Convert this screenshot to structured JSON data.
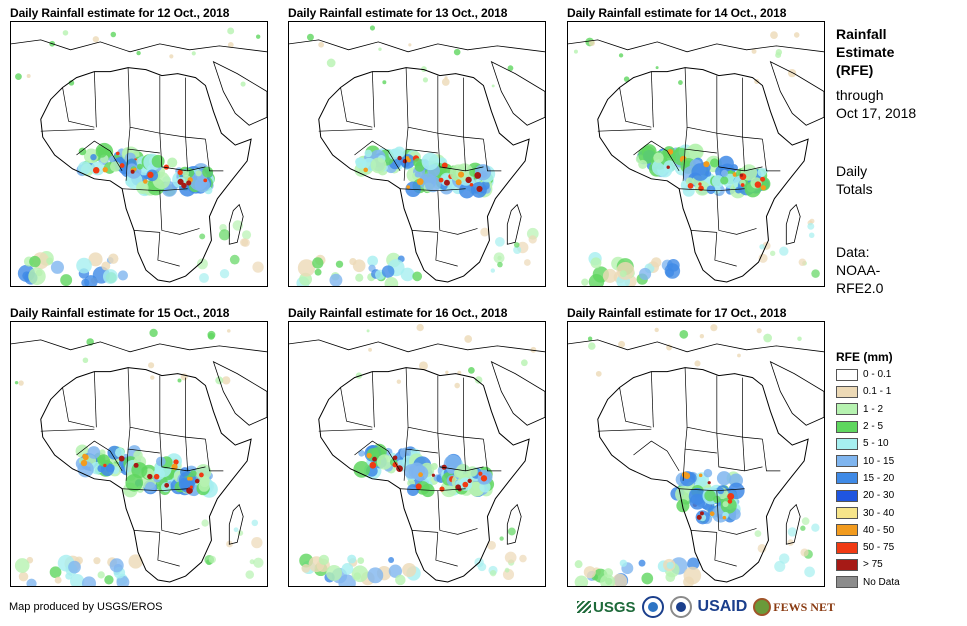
{
  "panels": [
    {
      "title": "Daily Rainfall estimate for 12 Oct., 2018"
    },
    {
      "title": "Daily Rainfall estimate for 13 Oct., 2018"
    },
    {
      "title": "Daily Rainfall estimate for 14 Oct., 2018"
    },
    {
      "title": "Daily Rainfall estimate for 15 Oct., 2018"
    },
    {
      "title": "Daily Rainfall estimate for 16 Oct., 2018"
    },
    {
      "title": "Daily Rainfall estimate for 17 Oct., 2018"
    }
  ],
  "sidebar": {
    "title_lines": [
      "Rainfall",
      "Estimate",
      "(RFE)"
    ],
    "through_lines": [
      "through",
      "Oct 17, 2018"
    ],
    "totals_lines": [
      "Daily",
      "Totals"
    ],
    "data_lines": [
      "Data:",
      "NOAA-",
      "RFE2.0"
    ]
  },
  "legend": {
    "title": "RFE (mm)",
    "items": [
      {
        "label": "0 - 0.1",
        "color": "#ffffff"
      },
      {
        "label": "0.1 - 1",
        "color": "#ecd9b6"
      },
      {
        "label": "1 - 2",
        "color": "#b6f2b0"
      },
      {
        "label": "2 - 5",
        "color": "#5fd65f"
      },
      {
        "label": "5 - 10",
        "color": "#a6eff0"
      },
      {
        "label": "10 - 15",
        "color": "#7fb5ef"
      },
      {
        "label": "15 - 20",
        "color": "#3f8ae6"
      },
      {
        "label": "20 - 30",
        "color": "#1f55e0"
      },
      {
        "label": "30 - 40",
        "color": "#f7e58a"
      },
      {
        "label": "40 - 50",
        "color": "#f29b1e"
      },
      {
        "label": "50 - 75",
        "color": "#f03a13"
      },
      {
        "label": "> 75",
        "color": "#a61a16"
      },
      {
        "label": "No Data",
        "color": "#8c8c8c"
      }
    ]
  },
  "footer": {
    "credit": "Map produced by USGS/EROS",
    "logos": {
      "usgs": "USGS",
      "usaid": "USAID",
      "fews": "FEWS NET"
    }
  }
}
